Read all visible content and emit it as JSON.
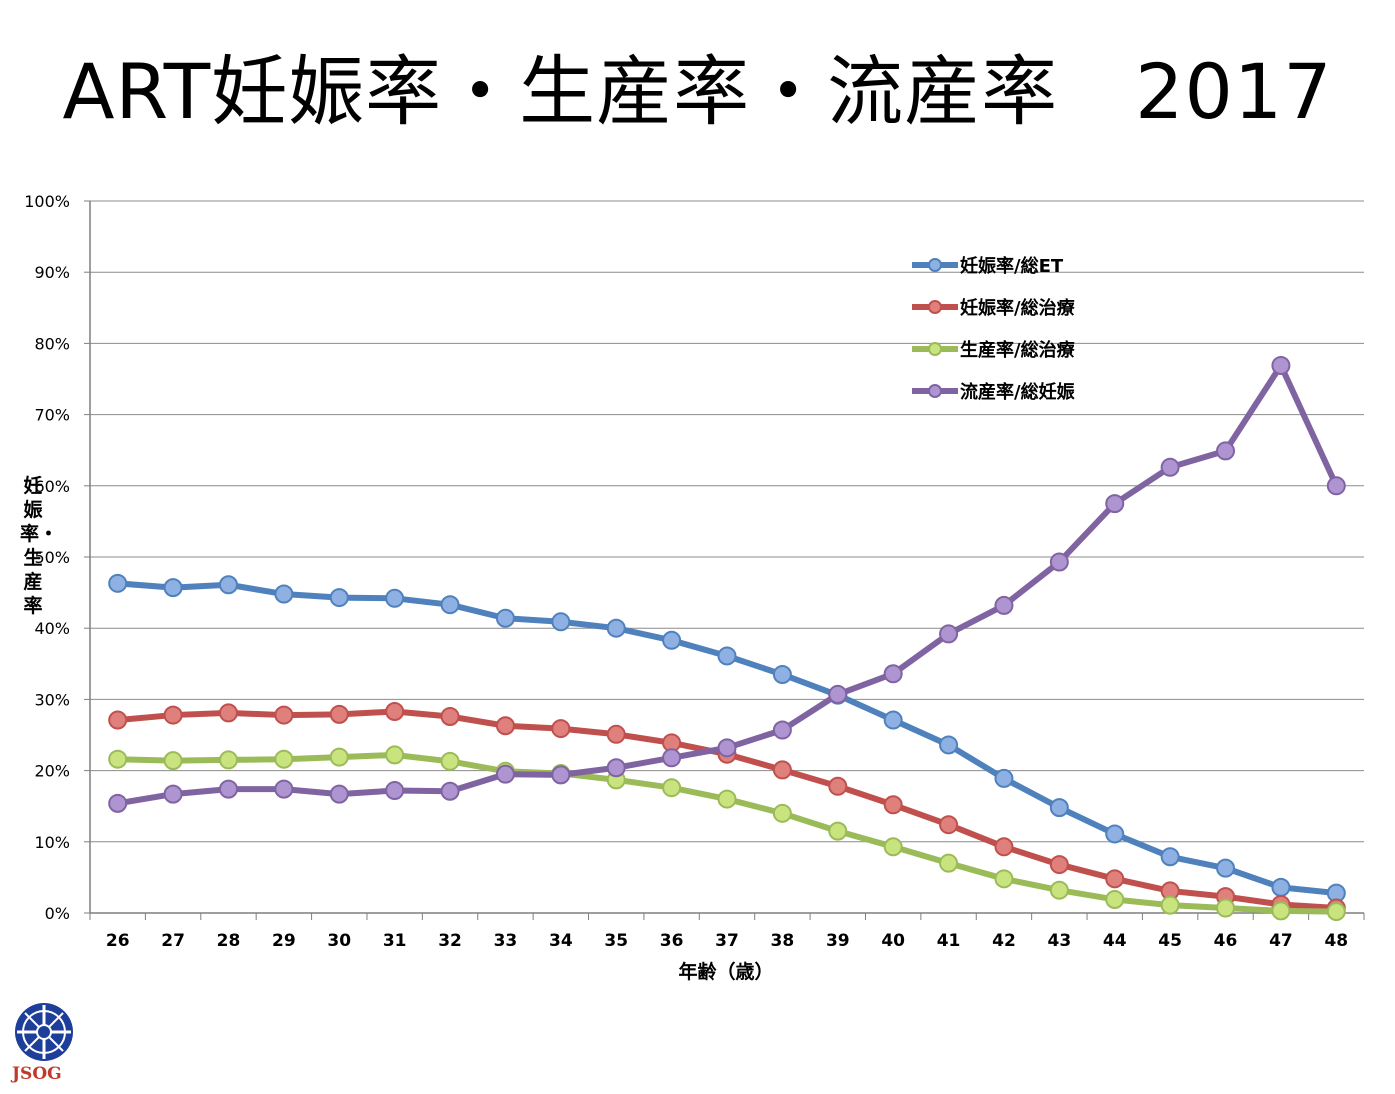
{
  "title": "ART妊娠率・生産率・流産率　2017",
  "logo_text": "JSOG",
  "chart_data": {
    "type": "line",
    "title": "ART妊娠率・生産率・流産率　2017",
    "xlabel": "年齢（歳）",
    "ylabel": "妊娠率・生産率",
    "x": [
      26,
      27,
      28,
      29,
      30,
      31,
      32,
      33,
      34,
      35,
      36,
      37,
      38,
      39,
      40,
      41,
      42,
      43,
      44,
      45,
      46,
      47,
      48
    ],
    "ylim": [
      0,
      100
    ],
    "yticks": [
      "0%",
      "10%",
      "20%",
      "30%",
      "40%",
      "50%",
      "60%",
      "70%",
      "80%",
      "90%",
      "100%"
    ],
    "grid": "horizontal",
    "legend": "upper-right",
    "series": [
      {
        "name": "妊娠率/総ET",
        "color": "#4f81bd",
        "marker": "#8fb0e2",
        "values": [
          46.3,
          45.7,
          46.1,
          44.8,
          44.3,
          44.2,
          43.3,
          41.4,
          40.9,
          40.0,
          38.3,
          36.1,
          33.5,
          30.6,
          27.1,
          23.6,
          18.9,
          14.8,
          11.1,
          7.9,
          6.3,
          3.6,
          2.8
        ]
      },
      {
        "name": "妊娠率/総治療",
        "color": "#c0504d",
        "marker": "#e0807c",
        "values": [
          27.1,
          27.8,
          28.1,
          27.8,
          27.9,
          28.3,
          27.6,
          26.3,
          25.9,
          25.1,
          23.9,
          22.3,
          20.1,
          17.8,
          15.2,
          12.4,
          9.3,
          6.8,
          4.8,
          3.1,
          2.3,
          1.2,
          0.7
        ]
      },
      {
        "name": "生産率/総治療",
        "color": "#9bbb59",
        "marker": "#c9e47e",
        "values": [
          21.6,
          21.4,
          21.5,
          21.6,
          21.9,
          22.2,
          21.3,
          19.9,
          19.6,
          18.7,
          17.6,
          16.0,
          14.0,
          11.5,
          9.3,
          7.0,
          4.8,
          3.2,
          1.9,
          1.1,
          0.7,
          0.3,
          0.2
        ]
      },
      {
        "name": "流産率/総妊娠",
        "color": "#8064a2",
        "marker": "#ae95d2",
        "values": [
          15.4,
          16.7,
          17.4,
          17.4,
          16.7,
          17.2,
          17.1,
          19.5,
          19.4,
          20.4,
          21.8,
          23.2,
          25.7,
          30.7,
          33.6,
          39.2,
          43.2,
          49.3,
          57.5,
          62.6,
          64.9,
          76.9,
          60.0
        ]
      }
    ]
  }
}
